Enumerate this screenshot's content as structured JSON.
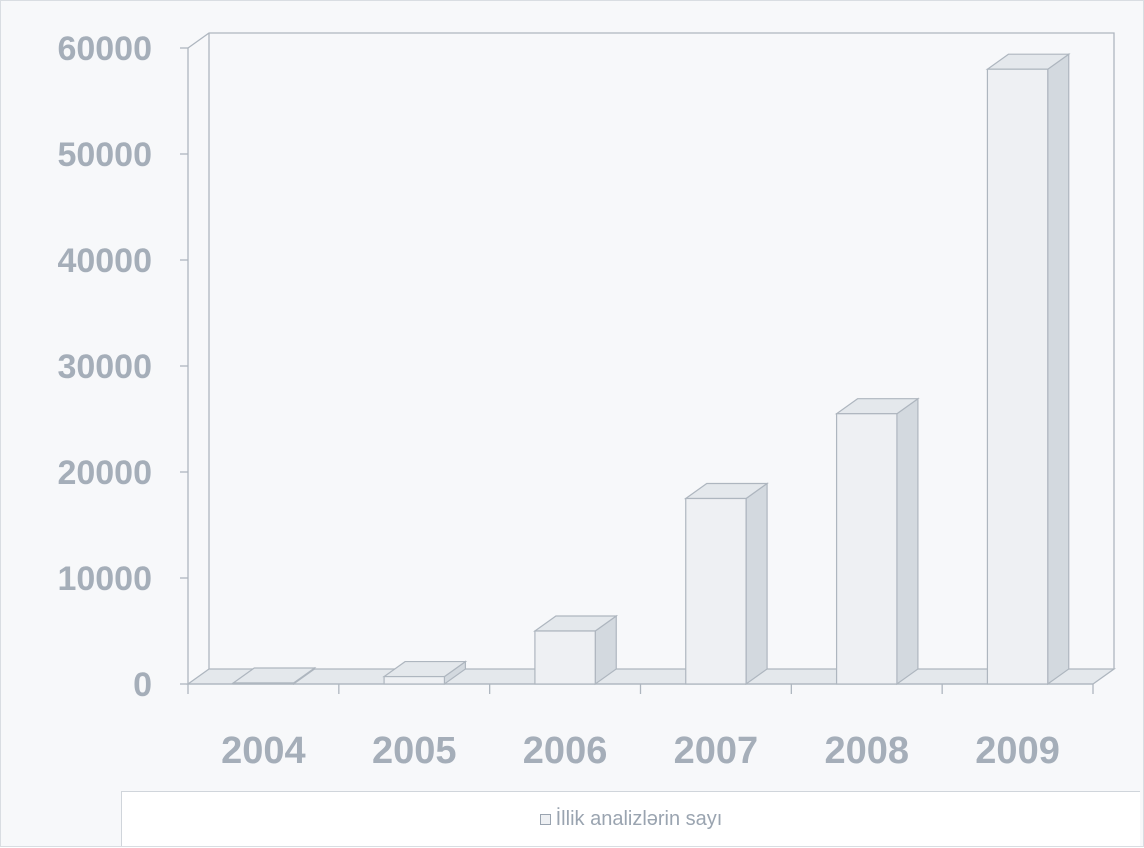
{
  "chart_data": {
    "type": "bar",
    "categories": [
      "2004",
      "2005",
      "2006",
      "2007",
      "2008",
      "2009"
    ],
    "series": [
      {
        "name": "İllik analizlərin sayı",
        "values": [
          0,
          700,
          5000,
          17500,
          25500,
          58000
        ]
      }
    ],
    "yticks": [
      "0",
      "10000",
      "20000",
      "30000",
      "40000",
      "50000",
      "60000"
    ],
    "ylim": [
      0,
      60000
    ],
    "legend_position": "bottom",
    "grid": false,
    "style": "3d",
    "colors": {
      "bar_front": "#eef0f3",
      "bar_side": "#d3d9df",
      "bar_top": "#e4e8ec",
      "axis": "#aeb6bf",
      "text": "#a5aeb9"
    }
  },
  "legend": {
    "label": "İllik analizlərin sayı"
  }
}
